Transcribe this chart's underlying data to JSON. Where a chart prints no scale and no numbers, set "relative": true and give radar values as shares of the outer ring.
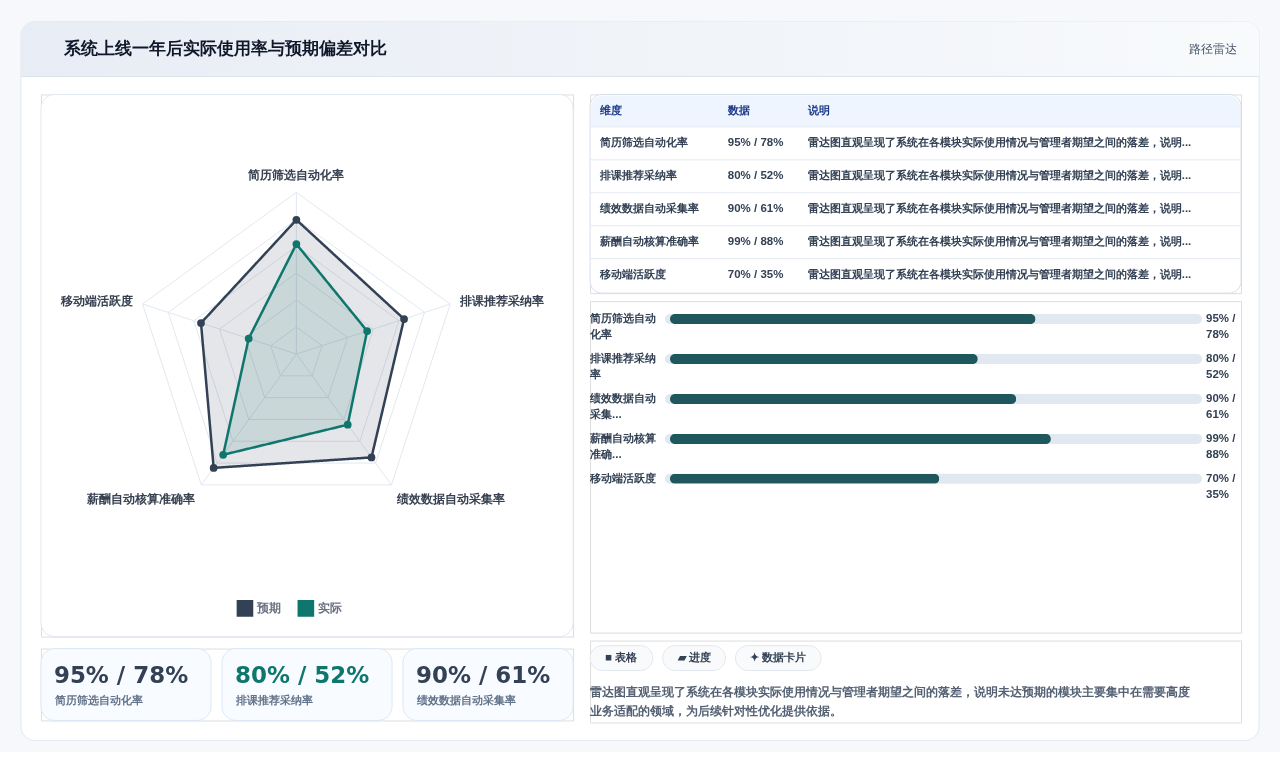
{
  "chart_data": [
    {
      "type": "radar",
      "title": "系统上线一年后实际使用率与预期偏差对比",
      "annotations": [
        "路径雷达"
      ],
      "categories": [
        "简历筛选自动化率",
        "排课推荐采纳率",
        "绩效数据自动采集率",
        "薪酬自动核算准确率",
        "移动端活跃度"
      ],
      "relative": true,
      "grid": true,
      "marker": "circle",
      "legend": "bottom",
      "series": [
        {
          "name": "预期",
          "color": "#334155",
          "values": [
            0.83,
            0.7,
            0.79,
            0.87,
            0.62
          ]
        },
        {
          "name": "实际",
          "color": "#0f766e",
          "values": [
            0.68,
            0.46,
            0.54,
            0.77,
            0.31
          ]
        }
      ]
    },
    {
      "type": "other",
      "categories": [
        "简历筛选自动化率",
        "排课推荐采纳率",
        "绩效数据自动采集率"
      ],
      "value_labels": [
        "95% / 78%",
        "80% / 52%",
        "90% / 61%"
      ]
    },
    {
      "type": "other",
      "categories": [
        "维度",
        "数据",
        "说明"
      ],
      "cell_labels": [
        [
          "简历筛选自动化率",
          "95% / 78%",
          "雷达图直观呈现了系统在各模块实际使用情况与管理者期望之间的落差，说明..."
        ],
        [
          "排课推荐采纳率",
          "80% / 52%",
          "雷达图直观呈现了系统在各模块实际使用情况与管理者期望之间的落差，说明..."
        ],
        [
          "绩效数据自动采集率",
          "90% / 61%",
          "雷达图直观呈现了系统在各模块实际使用情况与管理者期望之间的落差，说明..."
        ],
        [
          "薪酬自动核算准确率",
          "99% / 88%",
          "雷达图直观呈现了系统在各模块实际使用情况与管理者期望之间的落差，说明..."
        ],
        [
          "移动端活跃度",
          "70% / 35%",
          "雷达图直观呈现了系统在各模块实际使用情况与管理者期望之间的落差，说明..."
        ]
      ]
    },
    {
      "type": "bar",
      "orientation": "horizontal",
      "categories": [
        "简历筛选自动化率",
        "排课推荐采纳率",
        "绩效数据自动采集...",
        "薪酬自动核算准确...",
        "移动端活跃度"
      ],
      "values": [
        95,
        80,
        90,
        99,
        70
      ],
      "value_labels": [
        "95% / 78%",
        "80% / 52%",
        "90% / 61%",
        "99% / 88%",
        "70% / 35%"
      ],
      "color": "#1e585e",
      "xlim": [
        0,
        137
      ],
      "tick_labels": "y"
    },
    {
      "type": "other",
      "categories": [
        "■ 表格",
        "▰ 进度",
        "✦ 数据卡片"
      ],
      "annotations": [
        "雷达图直观呈现了系统在各模块实际使用情况与管理者期望之间的落差，说明未达预期的模块主要集中在需要高度业务适配的领域，为后续针对性优化提供依据。"
      ]
    }
  ]
}
